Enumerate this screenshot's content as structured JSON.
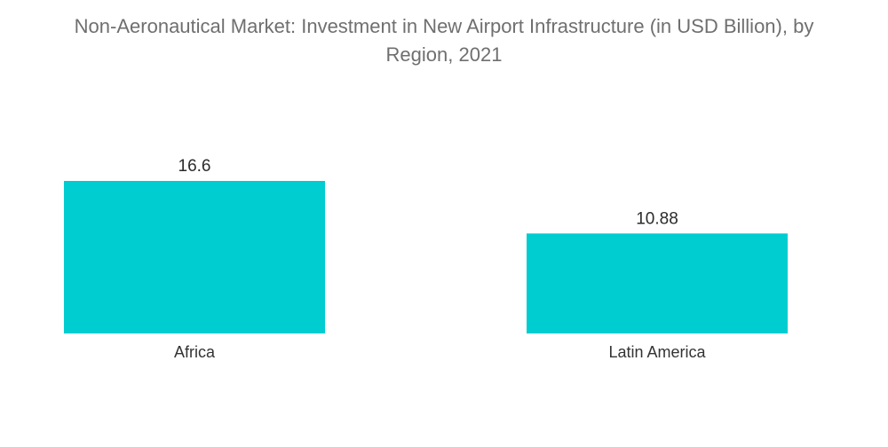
{
  "chart_data": {
    "type": "bar",
    "title_lines": [
      "Non-Aeronautical Market: Investment in New Airport Infrastructure (in USD Billion), by",
      "Region, 2021"
    ],
    "categories": [
      "Africa",
      "Latin America"
    ],
    "values": [
      16.6,
      10.88
    ],
    "value_labels": [
      "16.6",
      "10.88"
    ],
    "xlabel": "",
    "ylabel": "",
    "ylim": [
      0,
      16.6
    ],
    "grid": false,
    "bar_color": "#00CDD0"
  }
}
